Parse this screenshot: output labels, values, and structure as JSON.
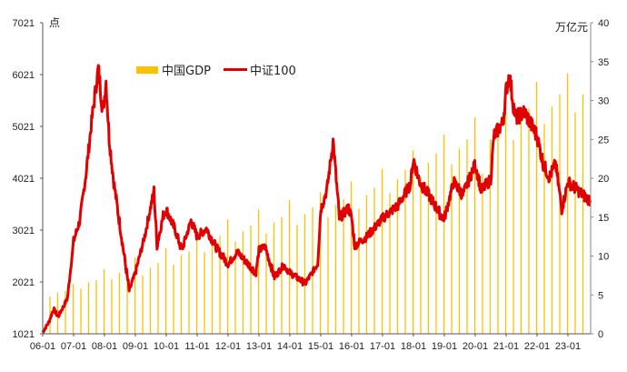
{
  "chart_data": {
    "type": "bar+line",
    "left_axis": {
      "label": "点",
      "ticks": [
        1021,
        2021,
        3021,
        4021,
        5021,
        6021,
        7021
      ],
      "range": [
        1021,
        7021
      ]
    },
    "right_axis": {
      "label": "万亿元",
      "ticks": [
        0,
        5,
        10,
        15,
        20,
        25,
        30,
        35,
        40
      ],
      "range": [
        0,
        40
      ]
    },
    "x_ticks": [
      "06-01",
      "07-01",
      "08-01",
      "09-01",
      "10-01",
      "11-01",
      "12-01",
      "13-01",
      "14-01",
      "15-01",
      "16-01",
      "17-01",
      "18-01",
      "19-01",
      "20-01",
      "21-01",
      "22-01",
      "23-01"
    ],
    "legend": {
      "placement": "top-left",
      "entries": [
        "中国GDP",
        "中证100"
      ]
    },
    "colors": {
      "gdp": "#FFC000",
      "index": "#E00000"
    },
    "series": [
      {
        "name": "中国GDP",
        "type": "bar",
        "axis": "right",
        "unit": "万亿元",
        "quarters_from": "2006Q1",
        "values": [
          4.8,
          5.3,
          5.5,
          6.4,
          5.8,
          6.6,
          6.9,
          8.3,
          7.0,
          7.9,
          8.2,
          9.8,
          7.5,
          8.5,
          9.1,
          11.0,
          8.9,
          10.1,
          10.6,
          12.6,
          10.5,
          12.0,
          12.6,
          14.7,
          11.9,
          13.2,
          13.9,
          16.0,
          12.9,
          14.3,
          15.0,
          17.2,
          14.0,
          15.4,
          16.3,
          18.2,
          15.0,
          16.6,
          17.3,
          19.6,
          16.1,
          17.8,
          18.8,
          21.2,
          18.1,
          19.9,
          21.1,
          23.6,
          20.2,
          22.0,
          23.2,
          25.6,
          21.8,
          23.8,
          25.0,
          27.8,
          20.6,
          25.0,
          26.6,
          29.6,
          24.9,
          28.2,
          29.0,
          32.4,
          27.0,
          29.2,
          30.8,
          33.5,
          28.5,
          30.8
        ]
      },
      {
        "name": "中证100",
        "type": "line",
        "axis": "left",
        "unit": "点",
        "points": [
          [
            2006.0,
            1050
          ],
          [
            2006.2,
            1250
          ],
          [
            2006.35,
            1500
          ],
          [
            2006.5,
            1350
          ],
          [
            2006.8,
            1700
          ],
          [
            2007.0,
            2810
          ],
          [
            2007.2,
            3200
          ],
          [
            2007.4,
            4100
          ],
          [
            2007.6,
            5200
          ],
          [
            2007.8,
            6140
          ],
          [
            2007.95,
            5300
          ],
          [
            2008.05,
            5900
          ],
          [
            2008.15,
            4800
          ],
          [
            2008.3,
            3950
          ],
          [
            2008.5,
            3100
          ],
          [
            2008.8,
            1850
          ],
          [
            2009.0,
            2200
          ],
          [
            2009.3,
            2900
          ],
          [
            2009.6,
            3780
          ],
          [
            2009.7,
            2720
          ],
          [
            2009.9,
            3300
          ],
          [
            2010.0,
            3420
          ],
          [
            2010.3,
            3000
          ],
          [
            2010.5,
            2630
          ],
          [
            2010.8,
            3200
          ],
          [
            2011.0,
            2900
          ],
          [
            2011.3,
            3050
          ],
          [
            2011.6,
            2700
          ],
          [
            2012.0,
            2370
          ],
          [
            2012.3,
            2600
          ],
          [
            2012.9,
            2200
          ],
          [
            2013.0,
            2630
          ],
          [
            2013.2,
            2700
          ],
          [
            2013.5,
            2110
          ],
          [
            2013.8,
            2350
          ],
          [
            2014.0,
            2200
          ],
          [
            2014.5,
            1990
          ],
          [
            2014.9,
            2370
          ],
          [
            2015.0,
            3420
          ],
          [
            2015.2,
            3800
          ],
          [
            2015.4,
            4740
          ],
          [
            2015.6,
            3250
          ],
          [
            2015.9,
            3450
          ],
          [
            2016.0,
            3250
          ],
          [
            2016.1,
            2720
          ],
          [
            2016.5,
            2900
          ],
          [
            2017.0,
            3250
          ],
          [
            2017.5,
            3500
          ],
          [
            2017.9,
            3900
          ],
          [
            2018.0,
            4390
          ],
          [
            2018.2,
            3950
          ],
          [
            2018.5,
            3690
          ],
          [
            2018.9,
            3300
          ],
          [
            2019.0,
            3250
          ],
          [
            2019.3,
            3950
          ],
          [
            2019.6,
            3700
          ],
          [
            2020.0,
            4300
          ],
          [
            2020.2,
            3780
          ],
          [
            2020.5,
            4000
          ],
          [
            2020.6,
            4830
          ],
          [
            2020.9,
            5100
          ],
          [
            2021.0,
            5710
          ],
          [
            2021.1,
            6020
          ],
          [
            2021.3,
            5180
          ],
          [
            2021.6,
            5300
          ],
          [
            2022.0,
            4830
          ],
          [
            2022.2,
            4300
          ],
          [
            2022.4,
            4040
          ],
          [
            2022.6,
            4300
          ],
          [
            2022.8,
            3420
          ],
          [
            2023.0,
            3950
          ],
          [
            2023.3,
            3800
          ],
          [
            2023.6,
            3640
          ],
          [
            2023.72,
            3600
          ]
        ]
      }
    ]
  }
}
